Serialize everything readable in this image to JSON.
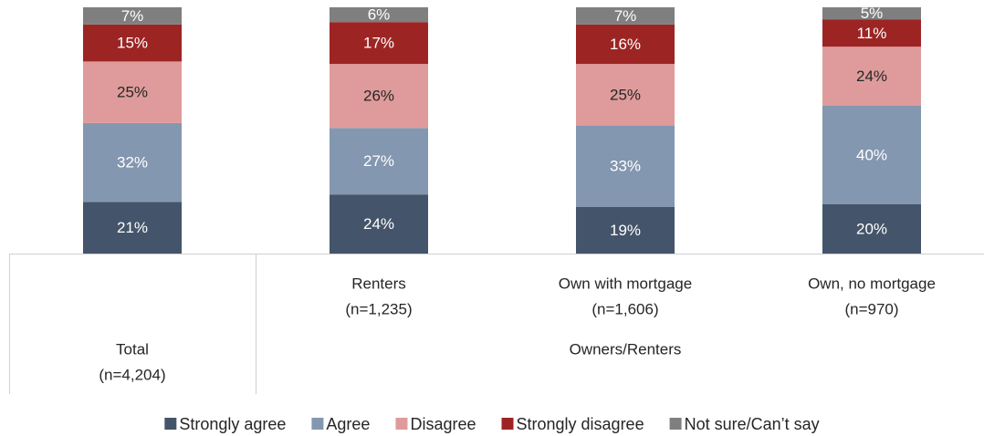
{
  "chart_data": {
    "type": "stacked_bar",
    "categories": [
      "Total",
      "Renters",
      "Own with mortgage",
      "Own, no mortgage"
    ],
    "category_notes": [
      "(n=4,204)",
      "(n=1,235)",
      "(n=1,606)",
      "(n=970)"
    ],
    "group_label": "Owners/Renters",
    "series": [
      {
        "name": "Strongly agree",
        "color": "#44546a",
        "label_color": "#ffffff",
        "values": [
          21,
          24,
          19,
          20
        ],
        "value_labels": [
          "21%",
          "24%",
          "19%",
          "20%"
        ]
      },
      {
        "name": "Agree",
        "color": "#8497b0",
        "label_color": "#ffffff",
        "values": [
          32,
          27,
          33,
          40
        ],
        "value_labels": [
          "32%",
          "27%",
          "33%",
          "40%"
        ]
      },
      {
        "name": "Disagree",
        "color": "#df9b9b",
        "label_color": "#262626",
        "values": [
          25,
          26,
          25,
          24
        ],
        "value_labels": [
          "25%",
          "26%",
          "25%",
          "24%"
        ]
      },
      {
        "name": "Strongly disagree",
        "color": "#9c2524",
        "label_color": "#ffffff",
        "values": [
          15,
          17,
          16,
          11
        ],
        "value_labels": [
          "15%",
          "17%",
          "16%",
          "11%"
        ]
      },
      {
        "name": "Not sure/Can’t say",
        "color": "#7f7f7f",
        "label_color": "#ffffff",
        "values": [
          7,
          6,
          7,
          5
        ],
        "value_labels": [
          "7%",
          "6%",
          "7%",
          "5%"
        ]
      }
    ],
    "legend": "bottom"
  }
}
